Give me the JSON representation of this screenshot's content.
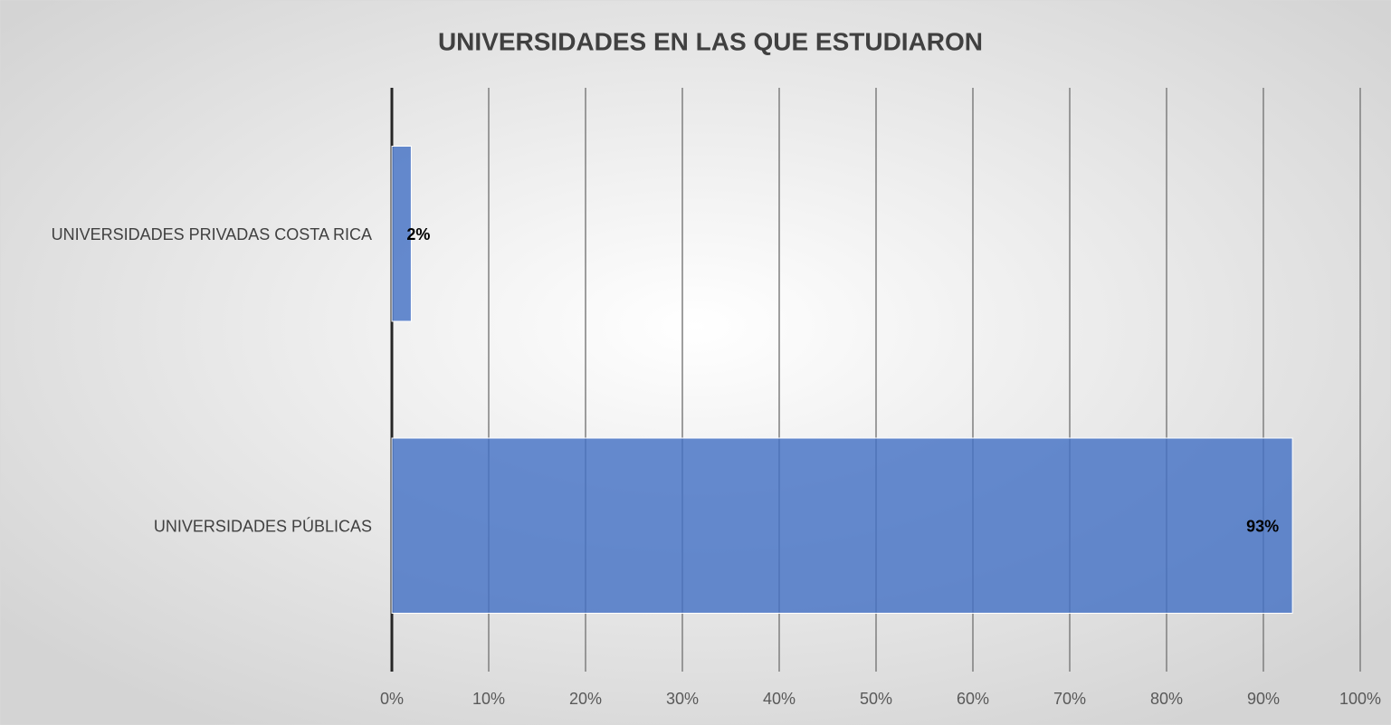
{
  "chart_data": {
    "type": "hbar",
    "title": "UNIVERSIDADES EN LAS QUE ESTUDIARON",
    "categories": [
      "UNIVERSIDADES PRIVADAS COSTA RICA",
      "UNIVERSIDADES PÚBLICAS"
    ],
    "values": [
      2,
      93
    ],
    "value_labels": [
      "2%",
      "93%"
    ],
    "color": "#4472c4",
    "xlim": [
      0,
      100
    ],
    "xticks": [
      {
        "value": 0,
        "label": "0%"
      },
      {
        "value": 10,
        "label": "10%"
      },
      {
        "value": 20,
        "label": "20%"
      },
      {
        "value": 30,
        "label": "30%"
      },
      {
        "value": 40,
        "label": "40%"
      },
      {
        "value": 50,
        "label": "50%"
      },
      {
        "value": 60,
        "label": "60%"
      },
      {
        "value": 70,
        "label": "70%"
      },
      {
        "value": 80,
        "label": "80%"
      },
      {
        "value": 90,
        "label": "90%"
      },
      {
        "value": 100,
        "label": "100%"
      }
    ],
    "grid": true
  }
}
